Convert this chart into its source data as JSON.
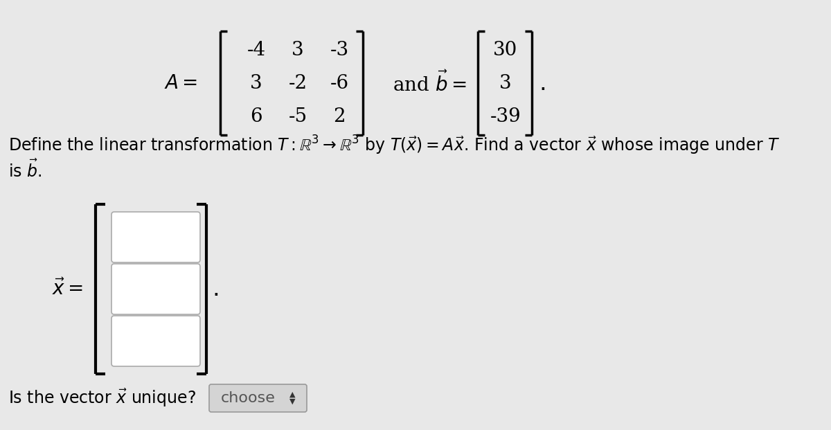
{
  "bg_color": "#e8e8e8",
  "text_color": "#000000",
  "matrix_A": [
    [
      -4,
      3,
      -3
    ],
    [
      3,
      -2,
      -6
    ],
    [
      6,
      -5,
      2
    ]
  ],
  "vector_b": [
    30,
    3,
    -39
  ],
  "input_box_color": "#ffffff",
  "bracket_color": "#000000",
  "choose_box_color": "#d4d4d4",
  "choose_border_color": "#999999",
  "input_border_color": "#aaaaaa"
}
